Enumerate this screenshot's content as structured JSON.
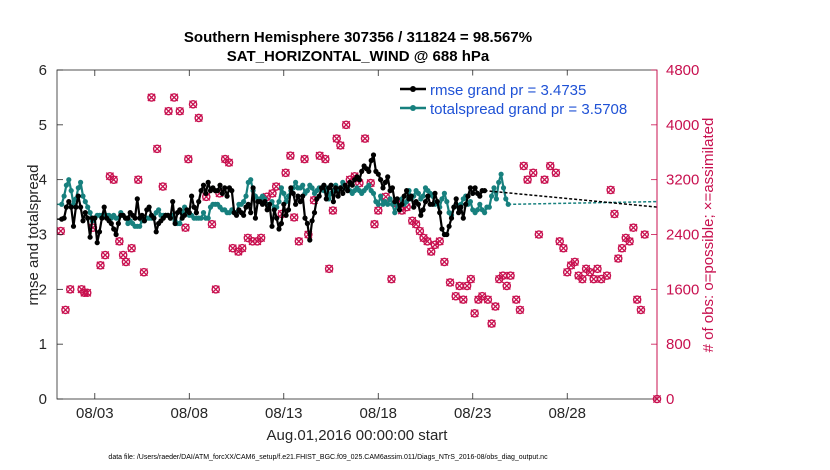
{
  "chart_data": {
    "type": "line",
    "title_line1": "Southern Hemisphere 307356 / 311824 = 98.567%",
    "title_line2": "SAT_HORIZONTAL_WIND @ 688 hPa",
    "xlabel": "Aug.01,2016 00:00:00 start",
    "ylabel_left": "rmse and totalspread",
    "ylabel_right": "# of obs: o=possible; ×=assimilated",
    "footnote": "data file: /Users/raeder/DAI/ATM_forcXX/CAM6_setup/f.e21.FHIST_BGC.f09_025.CAM6assim.011/Diags_NTrS_2016-08/obs_diag_output.nc",
    "x_range": [
      1.0,
      32.75
    ],
    "x_ticks": [
      3,
      8,
      13,
      18,
      23,
      28
    ],
    "x_tick_labels": [
      "08/03",
      "08/08",
      "08/13",
      "08/18",
      "08/23",
      "08/28"
    ],
    "ylim_left": [
      0,
      6
    ],
    "y_ticks_left": [
      "0",
      "1",
      "2",
      "3",
      "4",
      "5",
      "6"
    ],
    "ylim_right": [
      0,
      4800
    ],
    "y_ticks_right": [
      "0",
      "800",
      "1600",
      "2400",
      "3200",
      "4000",
      "4800"
    ],
    "colors": {
      "rmse": "#000000",
      "spread": "#17807e",
      "obs": "#c8104f",
      "legend_text": "#1f52d6"
    },
    "legend": [
      {
        "name": "rmse grand pr = 3.4735",
        "key": "rmse"
      },
      {
        "name": "totalspread grand pr = 3.5708",
        "key": "spread"
      }
    ],
    "series": [
      {
        "name": "rmse",
        "values": [
          3.28,
          3.3,
          3.5,
          3.6,
          3.5,
          3.15,
          3.5,
          3.7,
          3.5,
          3.25,
          3.4,
          3.3,
          2.95,
          3.3,
          3.3,
          2.85,
          3.05,
          3.3,
          3.5,
          3.3,
          3.25,
          3.2,
          3.1,
          3.0,
          3.2,
          3.35,
          3.35,
          3.3,
          3.3,
          3.4,
          3.35,
          3.3,
          3.65,
          3.3,
          3.35,
          3.25,
          3.45,
          3.5,
          3.35,
          3.3,
          3.05,
          3.2,
          3.25,
          3.3,
          3.35,
          3.35,
          3.3,
          3.6,
          3.2,
          3.4,
          3.45,
          3.3,
          3.35,
          3.45,
          3.4,
          3.7,
          3.5,
          3.4,
          3.6,
          3.8,
          3.9,
          3.75,
          3.95,
          3.8,
          3.85,
          3.8,
          3.8,
          3.9,
          3.75,
          3.85,
          3.7,
          3.85,
          3.8,
          3.4,
          3.35,
          3.45,
          3.4,
          3.35,
          3.5,
          3.55,
          3.4,
          3.85,
          3.3,
          3.6,
          3.6,
          3.55,
          3.6,
          3.45,
          3.55,
          3.15,
          3.45,
          3.3,
          3.1,
          3.2,
          3.55,
          3.35,
          3.45,
          3.85,
          3.75,
          3.55,
          3.7,
          3.6,
          3.7,
          3.3,
          3.2,
          2.9,
          3.25,
          3.4,
          3.65,
          3.7,
          3.85,
          3.9,
          3.65,
          3.85,
          3.9,
          3.6,
          3.85,
          3.7,
          3.85,
          3.75,
          3.9,
          3.8,
          3.95,
          3.9,
          4.0,
          4.05,
          4.0,
          4.15,
          4.25,
          4.2,
          4.15,
          4.35,
          4.45,
          4.15,
          4.1,
          4.0,
          3.85,
          3.95,
          4.05,
          3.8,
          3.85,
          3.6,
          3.65,
          3.45,
          3.55,
          3.7,
          3.8,
          3.65,
          3.7,
          3.5,
          3.6,
          3.55,
          3.35,
          3.45,
          3.6,
          3.7,
          3.55,
          3.55,
          3.75,
          3.6,
          3.4,
          3.1,
          3.0,
          3.0,
          3.15,
          3.3,
          3.5,
          3.65,
          3.4,
          3.5,
          3.3,
          3.55,
          3.7,
          3.85,
          3.75,
          3.85,
          3.75,
          3.7,
          3.8,
          3.8
        ],
        "dashed_to": 3.5
      },
      {
        "name": "totalspread",
        "values": [
          3.55,
          3.7,
          3.9,
          4.0,
          3.8,
          3.55,
          3.65,
          3.85,
          3.95,
          3.7,
          3.6,
          3.5,
          3.4,
          3.25,
          3.3,
          3.35,
          3.35,
          3.35,
          3.35,
          3.35,
          3.35,
          3.3,
          3.35,
          3.3,
          3.3,
          3.4,
          3.35,
          3.3,
          3.2,
          3.25,
          3.2,
          3.15,
          3.15,
          3.15,
          3.25,
          3.25,
          3.3,
          3.3,
          3.3,
          3.3,
          3.4,
          3.45,
          3.35,
          3.35,
          3.35,
          3.35,
          3.3,
          3.35,
          3.25,
          3.2,
          3.2,
          3.4,
          3.5,
          3.4,
          3.35,
          3.35,
          3.3,
          3.3,
          3.3,
          3.3,
          3.4,
          3.3,
          3.3,
          3.5,
          3.55,
          3.55,
          3.55,
          3.5,
          3.45,
          3.45,
          3.4,
          3.4,
          3.45,
          3.4,
          3.4,
          3.55,
          3.55,
          3.6,
          3.7,
          3.95,
          4.0,
          3.8,
          3.7,
          3.65,
          3.65,
          3.7,
          3.65,
          3.55,
          3.55,
          3.6,
          3.5,
          3.5,
          3.6,
          3.85,
          3.75,
          3.6,
          3.7,
          3.8,
          3.85,
          3.95,
          3.85,
          3.85,
          3.9,
          3.75,
          3.8,
          3.9,
          3.85,
          3.75,
          3.8,
          3.85,
          3.85,
          3.8,
          3.85,
          3.65,
          3.75,
          3.8,
          3.9,
          3.8,
          3.85,
          3.95,
          3.85,
          3.85,
          3.8,
          3.75,
          3.8,
          3.85,
          3.8,
          3.75,
          3.8,
          3.85,
          3.9,
          3.8,
          3.75,
          3.6,
          3.55,
          3.7,
          3.55,
          3.6,
          3.55,
          3.65,
          3.55,
          3.4,
          3.55,
          3.45,
          3.65,
          3.55,
          3.6,
          3.8,
          3.65,
          3.7,
          3.8,
          3.75,
          3.65,
          3.7,
          3.85,
          3.8,
          3.75,
          3.7,
          3.55,
          3.6,
          3.5,
          3.65,
          3.75,
          3.6,
          3.4,
          3.35,
          3.5,
          3.55,
          3.5,
          3.55,
          3.65,
          3.7,
          3.55,
          3.6,
          3.45,
          3.4,
          3.45,
          3.55,
          3.45,
          3.4,
          3.5,
          3.5,
          3.7,
          3.85,
          3.65,
          3.95,
          4.1,
          3.85,
          3.65,
          3.55
        ],
        "dashed_to": 3.6
      }
    ],
    "obs_possible": [
      [
        1.2,
        2450
      ],
      [
        1.45,
        1300
      ],
      [
        1.7,
        1600
      ],
      [
        2.3,
        1600
      ],
      [
        2.45,
        1550
      ],
      [
        2.6,
        1550
      ],
      [
        2.9,
        2500
      ],
      [
        3.3,
        1950
      ],
      [
        3.55,
        2100
      ],
      [
        3.8,
        3250
      ],
      [
        4.0,
        3200
      ],
      [
        4.3,
        2300
      ],
      [
        4.5,
        2100
      ],
      [
        4.65,
        2000
      ],
      [
        4.95,
        2200
      ],
      [
        5.3,
        3200
      ],
      [
        5.6,
        1850
      ],
      [
        6.0,
        4400
      ],
      [
        6.3,
        3650
      ],
      [
        6.6,
        3100
      ],
      [
        6.9,
        4200
      ],
      [
        7.2,
        4400
      ],
      [
        7.5,
        4200
      ],
      [
        7.8,
        2500
      ],
      [
        7.95,
        3500
      ],
      [
        8.2,
        4300
      ],
      [
        8.5,
        4100
      ],
      [
        8.9,
        2950
      ],
      [
        9.2,
        2550
      ],
      [
        9.4,
        1600
      ],
      [
        9.6,
        3000
      ],
      [
        9.9,
        3500
      ],
      [
        10.1,
        3450
      ],
      [
        10.3,
        2200
      ],
      [
        10.6,
        2150
      ],
      [
        10.8,
        2200
      ],
      [
        11.1,
        2350
      ],
      [
        11.35,
        2300
      ],
      [
        11.6,
        2300
      ],
      [
        11.8,
        2350
      ],
      [
        12.1,
        2950
      ],
      [
        12.4,
        3000
      ],
      [
        12.6,
        3100
      ],
      [
        12.9,
        2700
      ],
      [
        13.1,
        3300
      ],
      [
        13.35,
        3550
      ],
      [
        13.55,
        2650
      ],
      [
        13.8,
        2300
      ],
      [
        14.1,
        3500
      ],
      [
        14.3,
        2400
      ],
      [
        14.6,
        2900
      ],
      [
        14.9,
        3550
      ],
      [
        15.2,
        3500
      ],
      [
        15.4,
        1900
      ],
      [
        15.6,
        2750
      ],
      [
        15.8,
        3800
      ],
      [
        16.0,
        3700
      ],
      [
        16.3,
        4000
      ],
      [
        16.5,
        3200
      ],
      [
        16.75,
        3250
      ],
      [
        17.0,
        3150
      ],
      [
        17.3,
        3800
      ],
      [
        17.6,
        3150
      ],
      [
        17.8,
        2550
      ],
      [
        18.0,
        2750
      ],
      [
        18.4,
        2950
      ],
      [
        18.7,
        1750
      ],
      [
        19.0,
        2850
      ],
      [
        19.25,
        2750
      ],
      [
        19.5,
        2800
      ],
      [
        19.8,
        2600
      ],
      [
        20.0,
        2550
      ],
      [
        20.2,
        2450
      ],
      [
        20.4,
        2350
      ],
      [
        20.6,
        2300
      ],
      [
        20.8,
        2150
      ],
      [
        21.0,
        2250
      ],
      [
        21.25,
        2300
      ],
      [
        21.5,
        2000
      ],
      [
        21.8,
        1700
      ],
      [
        22.1,
        1500
      ],
      [
        22.3,
        1650
      ],
      [
        22.5,
        1450
      ],
      [
        22.7,
        1650
      ],
      [
        22.9,
        1750
      ],
      [
        23.1,
        1250
      ],
      [
        23.3,
        1450
      ],
      [
        23.5,
        1500
      ],
      [
        23.8,
        1450
      ],
      [
        24.0,
        1100
      ],
      [
        24.2,
        1350
      ],
      [
        24.4,
        1750
      ],
      [
        24.6,
        1800
      ],
      [
        24.8,
        1650
      ],
      [
        25.0,
        1800
      ],
      [
        25.3,
        1450
      ],
      [
        25.5,
        1300
      ],
      [
        25.7,
        3400
      ],
      [
        25.9,
        3200
      ],
      [
        26.2,
        3300
      ],
      [
        26.5,
        2400
      ],
      [
        26.8,
        3200
      ],
      [
        27.1,
        3400
      ],
      [
        27.4,
        3300
      ],
      [
        27.6,
        2300
      ],
      [
        27.8,
        2200
      ],
      [
        28.0,
        1850
      ],
      [
        28.2,
        1950
      ],
      [
        28.4,
        2000
      ],
      [
        28.6,
        1800
      ],
      [
        28.8,
        1750
      ],
      [
        29.0,
        1900
      ],
      [
        29.2,
        1850
      ],
      [
        29.4,
        1750
      ],
      [
        29.6,
        1900
      ],
      [
        29.8,
        1750
      ],
      [
        30.1,
        1800
      ],
      [
        30.3,
        3050
      ],
      [
        30.5,
        2700
      ],
      [
        30.7,
        2050
      ],
      [
        30.9,
        2200
      ],
      [
        31.1,
        2350
      ],
      [
        31.3,
        2300
      ],
      [
        31.5,
        2500
      ],
      [
        31.7,
        1450
      ],
      [
        31.9,
        1300
      ],
      [
        32.1,
        2400
      ],
      [
        32.75,
        0
      ]
    ]
  }
}
